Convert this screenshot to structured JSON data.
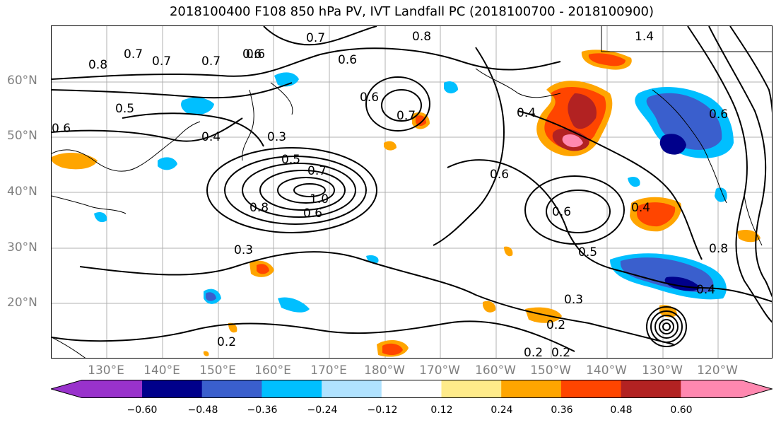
{
  "title": "2018100400 F108 850 hPa PV, IVT Landfall PC (2018100700 - 2018100900)",
  "lat_labels": [
    "60°N",
    "50°N",
    "40°N",
    "30°N",
    "20°N"
  ],
  "lon_labels": [
    "130°E",
    "140°E",
    "150°E",
    "160°E",
    "170°E",
    "180°W",
    "170°W",
    "160°W",
    "150°W",
    "140°W",
    "130°W",
    "120°W"
  ],
  "contour_labels": [
    "0.8",
    "0.7",
    "0.7",
    "0.6",
    "0.7",
    "0.8",
    "0.6",
    "0.7",
    "0.6",
    "1.4",
    "0.5",
    "0.6",
    "0.4",
    "0.3",
    "0.5",
    "0.7",
    "0.6",
    "0.4",
    "0.7",
    "0.6",
    "0.8",
    "1.0",
    "0.6",
    "0.6",
    "0.4",
    "0.6",
    "0.5",
    "0.3",
    "0.3",
    "0.2",
    "0.2",
    "0.2",
    "0.4",
    "0.8",
    "0.2"
  ],
  "colorbar": {
    "ticks": [
      "−0.60",
      "−0.48",
      "−0.36",
      "−0.24",
      "−0.12",
      "0.12",
      "0.24",
      "0.36",
      "0.48",
      "0.60"
    ],
    "colors": [
      "#9932cc",
      "#00008b",
      "#3a5fcd",
      "#00bfff",
      "#b0e2ff",
      "#ffffff",
      "#ffeb8a",
      "#ffa500",
      "#ff4500",
      "#b22222",
      "#ff88b0"
    ]
  }
}
